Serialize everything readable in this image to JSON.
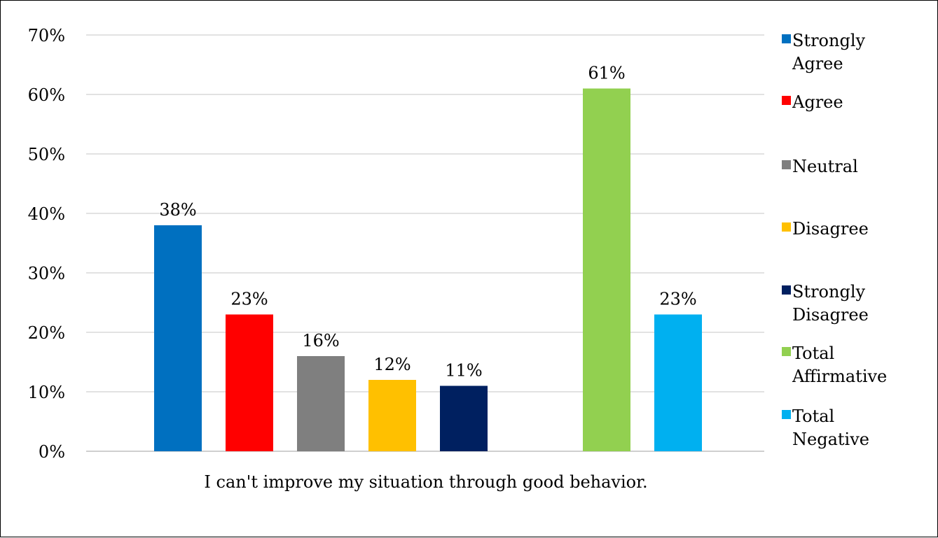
{
  "chart_data": {
    "type": "bar",
    "xlabel": "I can't improve my situation through good behavior.",
    "ylabel": "",
    "ylim": [
      0,
      70
    ],
    "yticks": [
      0,
      10,
      20,
      30,
      40,
      50,
      60,
      70
    ],
    "tick_suffix": "%",
    "grid": true,
    "legend_position": "right",
    "series": [
      {
        "name": "Strongly Agree",
        "value": 38,
        "label": "38%",
        "color": "#0070C0",
        "legend_lines": [
          "Strongly",
          "Agree"
        ]
      },
      {
        "name": "Agree",
        "value": 23,
        "label": "23%",
        "color": "#FF0000",
        "legend_lines": [
          "Agree"
        ]
      },
      {
        "name": "Neutral",
        "value": 16,
        "label": "16%",
        "color": "#7F7F7F",
        "legend_lines": [
          "Neutral"
        ]
      },
      {
        "name": "Disagree",
        "value": 12,
        "label": "12%",
        "color": "#FFC000",
        "legend_lines": [
          "Disagree"
        ]
      },
      {
        "name": "Strongly Disagree",
        "value": 11,
        "label": "11%",
        "color": "#002060",
        "legend_lines": [
          "Strongly",
          "Disagree"
        ]
      },
      {
        "name": "Total Affirmative",
        "value": 61,
        "label": "61%",
        "color": "#92D050",
        "legend_lines": [
          "Total",
          "Affirmative"
        ]
      },
      {
        "name": "Total Negative",
        "value": 23,
        "label": "23%",
        "color": "#00B0F0",
        "legend_lines": [
          "Total",
          "Negative"
        ]
      }
    ]
  }
}
